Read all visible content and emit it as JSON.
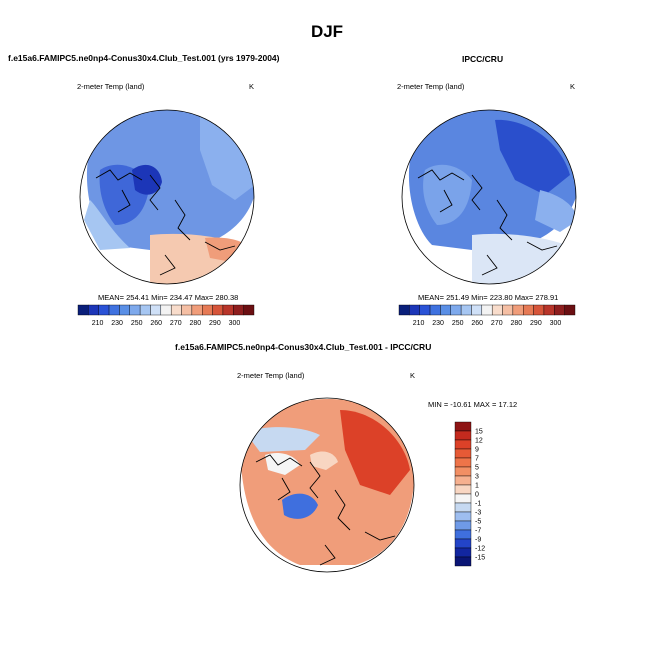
{
  "title": "DJF",
  "panels": [
    {
      "title": "f.e15a6.FAMIPC5.ne0np4-Conus30x4.Club_Test.001 (yrs 1979-2004)",
      "variable": "2-meter Temp (land)",
      "units": "K",
      "stats": "MEAN= 254.41  Min= 234.47  Max= 280.38"
    },
    {
      "title": "IPCC/CRU",
      "variable": "2-meter Temp (land)",
      "units": "K",
      "stats": "MEAN= 251.49  Min= 223.80  Max= 278.91"
    },
    {
      "title": "f.e15a6.FAMIPC5.ne0np4-Conus30x4.Club_Test.001 - IPCC/CRU",
      "variable": "2-meter Temp (land)",
      "units": "K",
      "stats": "MIN = -10.61 MAX =  17.12"
    }
  ],
  "colorbar_abs": {
    "labels": [
      "210",
      "230",
      "250",
      "260",
      "270",
      "280",
      "290",
      "300"
    ],
    "colors": [
      "#0a1f7a",
      "#1c36b8",
      "#2a52d6",
      "#3f72e0",
      "#5a8fe6",
      "#7ea9ec",
      "#a6c6f2",
      "#cfe0f7",
      "#f3f3f3",
      "#f8dccb",
      "#f5bfa4",
      "#f09d7a",
      "#e67a55",
      "#d6553a",
      "#b8352a",
      "#8e1e1e",
      "#6b0f12"
    ]
  },
  "colorbar_diff": {
    "labels": [
      "15",
      "12",
      "9",
      "7",
      "5",
      "3",
      "1",
      "0",
      "-1",
      "-3",
      "-5",
      "-7",
      "-9",
      "-12",
      "-15"
    ],
    "colors": [
      "#8e1414",
      "#c42a1e",
      "#dc4128",
      "#e65a36",
      "#ee7449",
      "#f28f64",
      "#f6b08f",
      "#f8d6c2",
      "#f5f5f5",
      "#c6d9f1",
      "#9ebef0",
      "#6f9ae7",
      "#3f6fde",
      "#2344c8",
      "#1226a0",
      "#0a1575"
    ]
  }
}
